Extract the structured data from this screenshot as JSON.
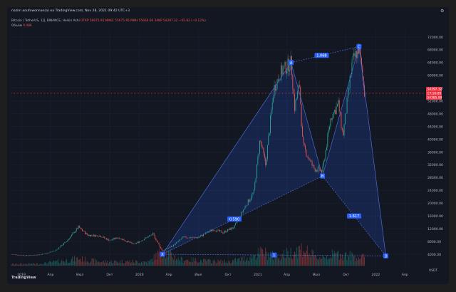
{
  "header": {
    "author_line": "nazim aoufowonnan(a) на TradingView.com, Nov 28, 2021 09:42 UTC+3",
    "symbol": "Bitcoin / TetherUS, 1Д, BINANCE, Heikin Ashi",
    "ohlc_label": "OTKP 56675.95  MAKC 55675.95  MИН 55666.60  ЗAKP 54397.32  −65.83 (−0.12%)",
    "volume_label": "Объём",
    "volume_value": "9.48K"
  },
  "gear_icon": "⚙",
  "footer": {
    "logo_text": "TradingView"
  },
  "colors": {
    "up": "#26a69a",
    "down": "#ef5350",
    "pattern_fill": "#2962ff",
    "pattern_line": "#4a6bd1",
    "label_bg": "#2962ff",
    "price_line": "#f23645"
  },
  "chart_data": {
    "type": "candlestick",
    "x_axis_labels": [
      "2019",
      "Апр",
      "Июл",
      "Окт",
      "2020",
      "Апр",
      "Июл",
      "Окт",
      "2021",
      "Апр",
      "Июл",
      "Окт",
      "2022",
      "Апр"
    ],
    "y_axis_labels": [
      "4000.00",
      "8000.00",
      "12000.00",
      "16000.00",
      "20000.00",
      "24000.00",
      "28000.00",
      "32000.00",
      "36000.00",
      "40000.00",
      "44000.00",
      "48000.00",
      "52000.00",
      "56000.00",
      "60000.00",
      "64000.00",
      "68000.00",
      "72000.00"
    ],
    "y_axis_unit": "USDT",
    "ylim": [
      0,
      74000
    ],
    "price_series": [
      [
        "2018-12-01",
        4000
      ],
      [
        "2019-01-15",
        3600
      ],
      [
        "2019-03-01",
        3900
      ],
      [
        "2019-04-15",
        5100
      ],
      [
        "2019-05-20",
        8000
      ],
      [
        "2019-06-26",
        12500
      ],
      [
        "2019-07-25",
        10000
      ],
      [
        "2019-09-01",
        9800
      ],
      [
        "2019-10-01",
        8300
      ],
      [
        "2019-10-26",
        9300
      ],
      [
        "2019-12-15",
        7100
      ],
      [
        "2020-01-15",
        8800
      ],
      [
        "2020-02-12",
        10300
      ],
      [
        "2020-03-12",
        5000
      ],
      [
        "2020-04-15",
        6800
      ],
      [
        "2020-05-15",
        9300
      ],
      [
        "2020-07-01",
        9200
      ],
      [
        "2020-08-15",
        11800
      ],
      [
        "2020-09-15",
        10800
      ],
      [
        "2020-10-20",
        12500
      ],
      [
        "2020-11-20",
        18500
      ],
      [
        "2020-12-20",
        23500
      ],
      [
        "2021-01-08",
        40000
      ],
      [
        "2021-01-25",
        32000
      ],
      [
        "2021-02-20",
        56000
      ],
      [
        "2021-03-13",
        61000
      ],
      [
        "2021-04-14",
        64000
      ],
      [
        "2021-04-25",
        50000
      ],
      [
        "2021-05-10",
        57000
      ],
      [
        "2021-05-20",
        38000
      ],
      [
        "2021-06-22",
        31000
      ],
      [
        "2021-07-20",
        30000
      ],
      [
        "2021-08-15",
        47000
      ],
      [
        "2021-09-07",
        51000
      ],
      [
        "2021-09-21",
        41000
      ],
      [
        "2021-10-20",
        64000
      ],
      [
        "2021-11-10",
        68500
      ],
      [
        "2021-11-27",
        54397
      ]
    ],
    "volume_series": [
      [
        "2018-12-01",
        0.4
      ],
      [
        "2019-03-01",
        0.5
      ],
      [
        "2019-05-15",
        1.3
      ],
      [
        "2019-06-26",
        1.8
      ],
      [
        "2019-09-01",
        1.0
      ],
      [
        "2019-11-01",
        1.1
      ],
      [
        "2020-02-01",
        1.0
      ],
      [
        "2020-03-12",
        4.0
      ],
      [
        "2020-05-01",
        1.6
      ],
      [
        "2020-08-01",
        1.2
      ],
      [
        "2020-10-01",
        1.0
      ],
      [
        "2020-12-01",
        2.0
      ],
      [
        "2021-01-15",
        3.5
      ],
      [
        "2021-03-01",
        2.2
      ],
      [
        "2021-05-19",
        4.5
      ],
      [
        "2021-07-01",
        2.0
      ],
      [
        "2021-09-07",
        3.0
      ],
      [
        "2021-11-27",
        2.0
      ]
    ],
    "current_price": 54397.32,
    "price_tags": [
      "54397.32",
      "17:16:09",
      "54385.99"
    ],
    "pattern_points": [
      {
        "label": "X",
        "date": "2020-03-12",
        "price": 4000
      },
      {
        "label": "A",
        "date": "2021-04-14",
        "price": 64000
      },
      {
        "label": "B",
        "date": "2021-07-20",
        "price": 28500
      },
      {
        "label": "C",
        "date": "2021-11-10",
        "price": 69000
      },
      {
        "label": "D",
        "date": "2022-02-01",
        "price": 3500
      }
    ],
    "ratios": [
      "0.590",
      "1.068",
      "1.617",
      "1"
    ]
  }
}
